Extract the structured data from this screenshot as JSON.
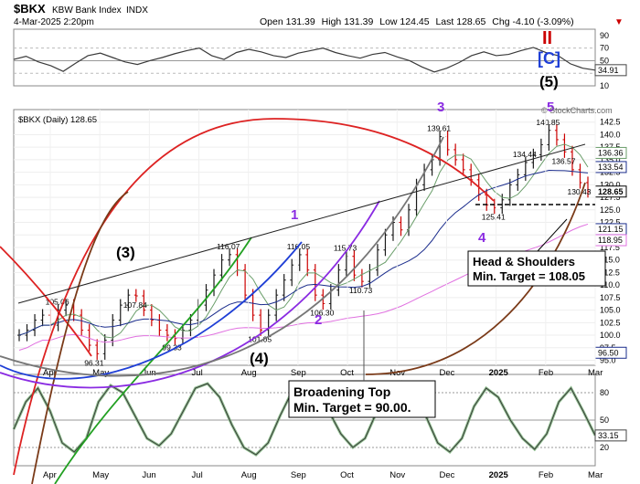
{
  "header": {
    "symbol": "$BKX",
    "name": "KBW Bank Index",
    "exchange": "INDX",
    "date": "4-Mar-2025 2:20pm",
    "open_label": "Open",
    "open": "131.39",
    "high_label": "High",
    "high": "131.39",
    "low_label": "Low",
    "low": "124.45",
    "last_label": "Last",
    "last": "128.65",
    "chg_label": "Chg",
    "chg": "-4.10 (-3.09%)",
    "watermark": "© StockCharts.com"
  },
  "colors": {
    "price_bar": "#1a1a1a",
    "up_red": "#cc0000",
    "wave_purple": "#8a2be2",
    "wave_blue": "#1f3fd6",
    "ma_long": "#1a2c8c",
    "ma_mid": "#6a9e6a",
    "ma_pink": "#e070e0",
    "rsi_line": "#3a3a3a",
    "stoch_fill": "#8fbf8f",
    "annotation_box": "#000000"
  },
  "chart_data": [
    {
      "type": "line",
      "panel": "RSI (top)",
      "ylim": [
        10,
        100
      ],
      "ytick_labels": [
        "90",
        "70",
        "50",
        "30",
        "10"
      ],
      "last_value_badge": "34.91",
      "values": [
        52,
        57,
        48,
        42,
        33,
        46,
        58,
        62,
        55,
        48,
        44,
        50,
        55,
        61,
        66,
        70,
        58,
        52,
        63,
        68,
        64,
        58,
        55,
        62,
        66,
        70,
        63,
        58,
        54,
        60,
        63,
        56,
        50,
        40,
        32,
        38,
        47,
        58,
        64,
        58,
        60,
        66,
        71,
        63,
        58,
        45,
        38,
        34.91
      ]
    },
    {
      "type": "candlestick",
      "panel": "Price (main)",
      "legend": "$BKX (Daily) 128.65",
      "ylim": [
        94,
        145
      ],
      "ytick_labels": [
        "142.5",
        "140.0",
        "137.5",
        "135.0",
        "132.5",
        "130.0",
        "127.5",
        "125.0",
        "122.5",
        "120.0",
        "117.5",
        "115.0",
        "112.5",
        "110.0",
        "107.5",
        "105.0",
        "102.5",
        "100.0",
        "97.5",
        "95.0"
      ],
      "x_month_labels": [
        "Apr",
        "May",
        "Jun",
        "Jul",
        "Aug",
        "Sep",
        "Oct",
        "Nov",
        "Dec",
        "2025",
        "Feb",
        "Mar"
      ],
      "close_series": [
        100,
        101,
        103,
        104,
        102,
        105,
        106,
        104,
        101,
        98,
        96.31,
        99,
        103,
        106,
        108,
        107.84,
        105,
        103,
        101,
        100,
        99.33,
        101,
        103,
        106,
        109,
        112,
        115,
        116.07,
        113,
        108,
        104,
        101.05,
        104,
        108,
        111,
        114,
        116.05,
        113,
        108,
        106.3,
        109,
        113,
        115.73,
        112,
        110.73,
        113,
        117,
        120,
        122.5,
        121,
        125,
        130,
        133,
        135,
        139.61,
        137,
        135,
        133,
        131,
        128,
        126,
        125.41,
        127,
        130,
        132,
        134.44,
        136,
        138,
        140.85,
        139,
        136.57,
        133,
        130.43,
        128.65
      ],
      "price_labels": [
        "105.06",
        "96.31",
        "107.84",
        "99.33",
        "116.07",
        "101.05",
        "116.05",
        "106.30",
        "115.73",
        "110.73",
        "139.61",
        "125.41",
        "134.44",
        "140.85",
        "136.57",
        "130.43"
      ],
      "right_badges": [
        "136.36",
        "133.54",
        "128.65",
        "121.15",
        "118.95",
        "96.50"
      ],
      "wave_labels": [
        "3",
        "5",
        "1",
        "2",
        "4",
        "(3)",
        "(4)",
        "(5)",
        "[C]",
        "II"
      ],
      "annotations": [
        {
          "text": "Head & Shoulders",
          "text2": "Min. Target =  108.05"
        },
        {
          "text": "Broadening Top",
          "text2": "Min. Target = 90.00."
        }
      ]
    },
    {
      "type": "line",
      "panel": "Stochastic (bottom)",
      "ylim": [
        0,
        100
      ],
      "ytick_labels": [
        "80",
        "50",
        "20"
      ],
      "last_value_badge": "33.15",
      "x_month_labels": [
        "Apr",
        "May",
        "Jun",
        "Jul",
        "Aug",
        "Sep",
        "Oct",
        "Nov",
        "Dec",
        "2025",
        "Feb",
        "Mar"
      ],
      "values": [
        40,
        70,
        85,
        60,
        25,
        15,
        30,
        70,
        88,
        80,
        55,
        30,
        22,
        35,
        60,
        85,
        90,
        75,
        45,
        20,
        12,
        25,
        55,
        82,
        90,
        85,
        60,
        35,
        20,
        30,
        60,
        88,
        92,
        80,
        55,
        25,
        15,
        30,
        65,
        85,
        75,
        50,
        30,
        18,
        35,
        70,
        85,
        60,
        33.15
      ]
    }
  ]
}
